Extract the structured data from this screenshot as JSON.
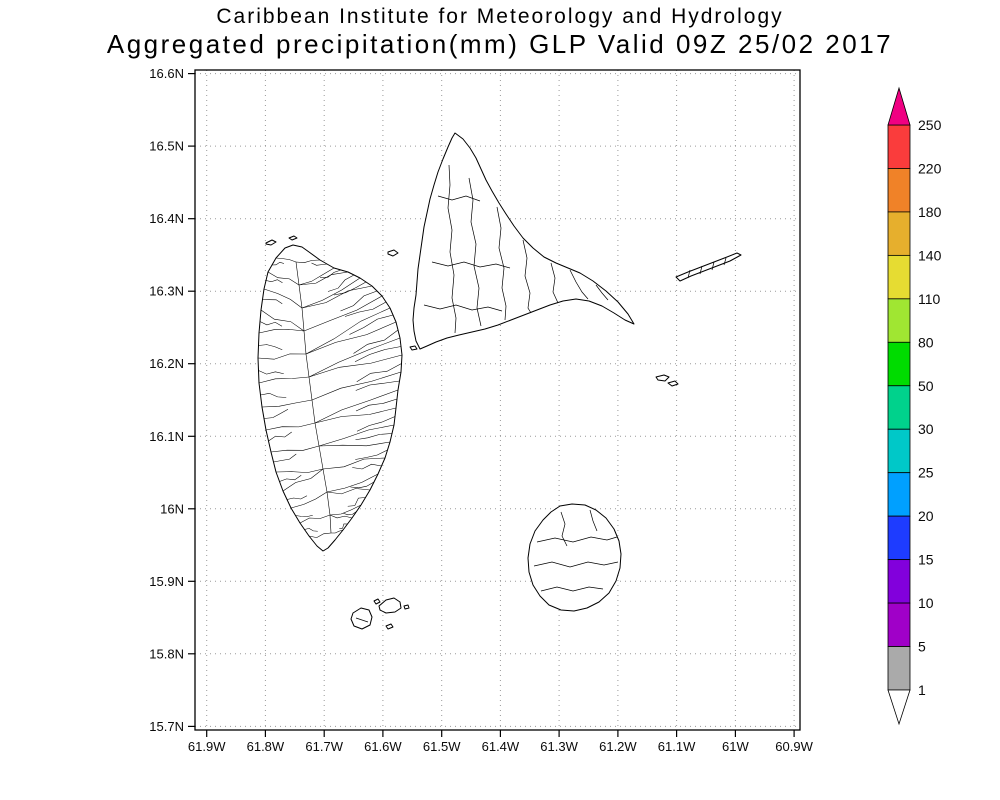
{
  "header": {
    "title": "Caribbean Institute for Meteorology and Hydrology",
    "subtitle": "Aggregated precipitation(mm) GLP Valid 09Z 25/02 2017"
  },
  "map": {
    "lat_ticks": [
      "16.6N",
      "16.5N",
      "16.4N",
      "16.3N",
      "16.2N",
      "16.1N",
      "16N",
      "15.9N",
      "15.8N",
      "15.7N"
    ],
    "lon_ticks": [
      "61.9W",
      "61.8W",
      "61.7W",
      "61.6W",
      "61.5W",
      "61.4W",
      "61.3W",
      "61.2W",
      "61.1W",
      "61W",
      "60.9W"
    ]
  },
  "colorbar": {
    "labels_top_to_bottom": [
      "250",
      "220",
      "180",
      "140",
      "110",
      "80",
      "50",
      "30",
      "25",
      "20",
      "15",
      "10",
      "5",
      "1"
    ],
    "segment_colors_top_to_bottom": [
      "#fa3c3c",
      "#f08228",
      "#e6af2d",
      "#e6dc32",
      "#a0e632",
      "#00dc00",
      "#00d28c",
      "#00c8c8",
      "#00a0ff",
      "#1e3cff",
      "#8200dc",
      "#a000c8",
      "#aaaaaa"
    ],
    "arrow_top_color": "#f00082",
    "arrow_bottom_color": "#ffffff",
    "label_color": "#1f6f6f"
  }
}
